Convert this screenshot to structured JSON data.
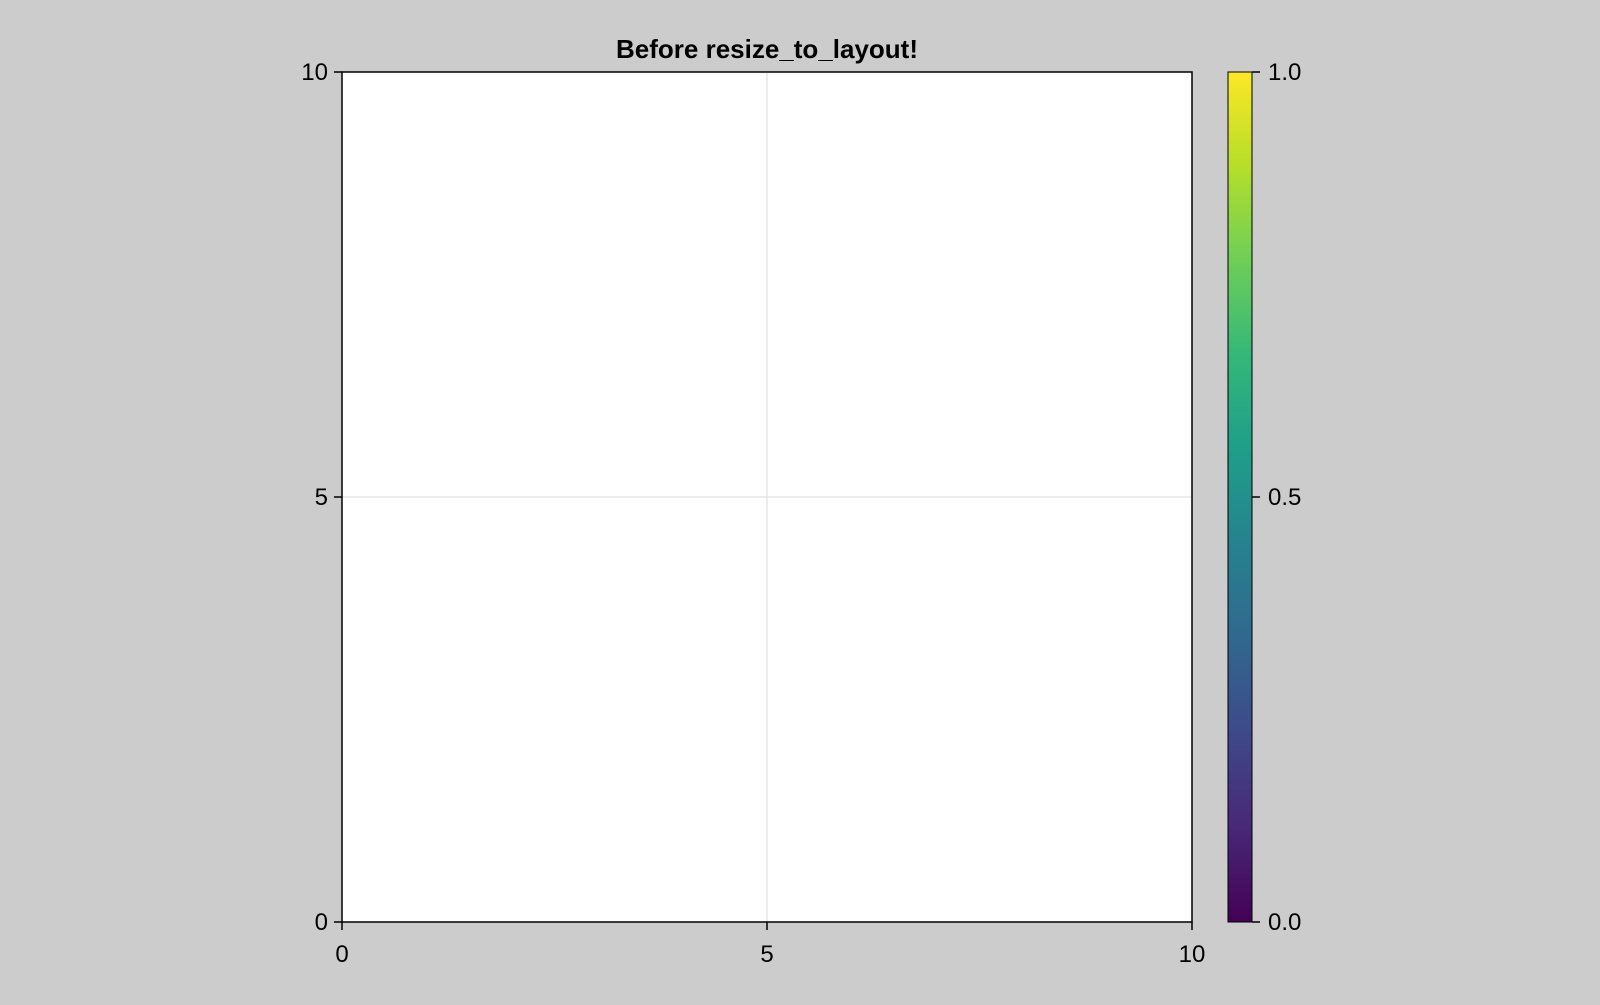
{
  "chart_data": {
    "type": "scatter",
    "title": "Before resize_to_layout!",
    "xlabel": "",
    "ylabel": "",
    "xlim": [
      0,
      10
    ],
    "ylim": [
      0,
      10
    ],
    "x_ticks": [
      "0",
      "5",
      "10"
    ],
    "y_ticks": [
      "0",
      "5",
      "10"
    ],
    "x_tick_values": [
      0,
      5,
      10
    ],
    "y_tick_values": [
      0,
      5,
      10
    ],
    "grid": true,
    "series": [],
    "colorbar": {
      "colormap": "viridis",
      "range": [
        0,
        1
      ],
      "ticks": [
        "0.0",
        "0.5",
        "1.0"
      ],
      "tick_values": [
        0,
        0.5,
        1
      ],
      "colors": [
        "#440154",
        "#482878",
        "#3e4989",
        "#31688e",
        "#26828e",
        "#1f9e89",
        "#35b779",
        "#6ece58",
        "#b5de2b",
        "#fde725"
      ]
    },
    "colors": {
      "background": "#cccccc",
      "plot_background": "#ffffff",
      "grid": "#e0e0e0",
      "axis": "#000000"
    }
  }
}
